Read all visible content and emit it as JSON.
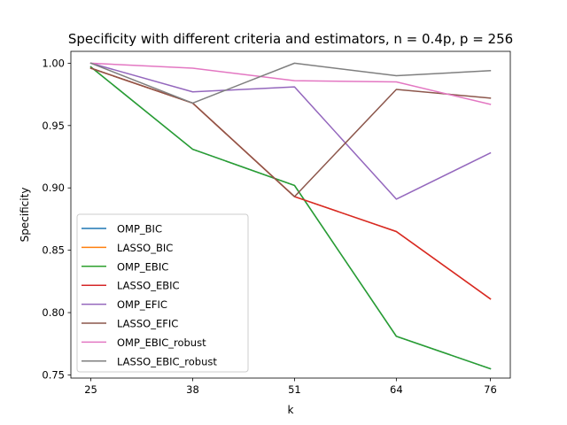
{
  "chart_data": {
    "type": "line",
    "title": "Specificity with different criteria and estimators, n = 0.4p, p = 256",
    "xlabel": "k",
    "ylabel": "Specificity",
    "x": [
      25,
      38,
      51,
      64,
      76
    ],
    "xticks": [
      "25",
      "38",
      "51",
      "64",
      "76"
    ],
    "yticks": [
      "0.75",
      "0.80",
      "0.85",
      "0.90",
      "0.95",
      "1.00"
    ],
    "ylim": [
      0.7475,
      1.0095
    ],
    "grid": false,
    "legend_position": "lower-left",
    "series": [
      {
        "name": "OMP_BIC",
        "color": "#1f77b4",
        "values": [
          0.997,
          0.931,
          0.902,
          0.781,
          0.755
        ]
      },
      {
        "name": "LASSO_BIC",
        "color": "#ff7f0e",
        "values": [
          0.996,
          0.968,
          0.893,
          0.865,
          0.811
        ]
      },
      {
        "name": "OMP_EBIC",
        "color": "#2ca02c",
        "values": [
          0.997,
          0.931,
          0.902,
          0.781,
          0.755
        ]
      },
      {
        "name": "LASSO_EBIC",
        "color": "#d62728",
        "values": [
          0.996,
          0.968,
          0.893,
          0.865,
          0.811
        ]
      },
      {
        "name": "OMP_EFIC",
        "color": "#9467bd",
        "values": [
          1.0,
          0.977,
          0.981,
          0.891,
          0.928
        ]
      },
      {
        "name": "LASSO_EFIC",
        "color": "#8c564b",
        "values": [
          0.996,
          0.968,
          0.893,
          0.979,
          0.972
        ]
      },
      {
        "name": "OMP_EBIC_robust",
        "color": "#e377c2",
        "values": [
          1.0,
          0.996,
          0.986,
          0.985,
          0.967
        ]
      },
      {
        "name": "LASSO_EBIC_robust",
        "color": "#7f7f7f",
        "values": [
          1.0,
          0.968,
          1.0,
          0.99,
          0.994
        ]
      }
    ]
  }
}
